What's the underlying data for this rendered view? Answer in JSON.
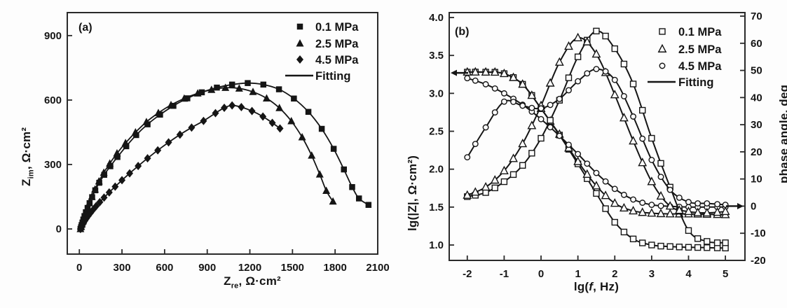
{
  "figure": {
    "colors": {
      "ink": "#151515",
      "axis": "#2a2a2a",
      "background": "#fdfdfd"
    },
    "panel_a": {
      "tag": "(a)",
      "xlabel": {
        "pre": "Z",
        "sub": "re",
        "post": ", Ω·cm²"
      },
      "ylabel": {
        "pre": "Z",
        "sub": "im",
        "post": ", Ω·cm²"
      },
      "legend": [
        {
          "label": "0.1 MPa",
          "marker": "square-filled"
        },
        {
          "label": "2.5 MPa",
          "marker": "triangle-filled"
        },
        {
          "label": "4.5 MPa",
          "marker": "diamond-filled"
        },
        {
          "label": "Fitting",
          "marker": "line"
        }
      ]
    },
    "panel_b": {
      "tag": "(b)",
      "xlabel": {
        "pre": "lg(",
        "it": "f",
        "post": ", Hz)"
      },
      "ylabel_left": "lg(|Z|, Ω·cm²)",
      "ylabel_right": "phase angle, deg",
      "legend": [
        {
          "label": "0.1 MPa",
          "marker": "square-open"
        },
        {
          "label": "2.5 MPa",
          "marker": "triangle-open"
        },
        {
          "label": "4.5 MPa",
          "marker": "circle-open"
        },
        {
          "label": "Fitting",
          "marker": "line"
        }
      ]
    }
  },
  "chart_data": [
    {
      "id": "a",
      "type": "scatter",
      "panel": "(a)",
      "xlabel": "Z_re, Ω·cm²",
      "ylabel": "Z_im, Ω·cm²",
      "xlim": [
        -85,
        2100
      ],
      "ylim": [
        -117,
        1007
      ],
      "x_ticks": {
        "values": [
          0,
          300,
          600,
          900,
          1200,
          1500,
          1800,
          2100
        ],
        "labels": [
          "0",
          "300",
          "600",
          "900",
          "1200",
          "1500",
          "1800",
          "2100"
        ]
      },
      "y_ticks": {
        "values": [
          0,
          300,
          600,
          900
        ],
        "labels": [
          "0",
          "300",
          "600",
          "900"
        ]
      },
      "grid": false,
      "legend_position": "top-right",
      "series": [
        {
          "name": "0.1 MPa",
          "marker": "square-filled",
          "points": [
            [
              8,
              0
            ],
            [
              12,
              8
            ],
            [
              16,
              18
            ],
            [
              22,
              30
            ],
            [
              28,
              44
            ],
            [
              36,
              60
            ],
            [
              46,
              78
            ],
            [
              58,
              98
            ],
            [
              72,
              120
            ],
            [
              90,
              148
            ],
            [
              112,
              180
            ],
            [
              140,
              215
            ],
            [
              175,
              252
            ],
            [
              218,
              292
            ],
            [
              268,
              335
            ],
            [
              330,
              385
            ],
            [
              400,
              437
            ],
            [
              480,
              487
            ],
            [
              568,
              532
            ],
            [
              662,
              573
            ],
            [
              760,
              608
            ],
            [
              862,
              636
            ],
            [
              968,
              658
            ],
            [
              1075,
              672
            ],
            [
              1185,
              679
            ],
            [
              1295,
              672
            ],
            [
              1405,
              650
            ],
            [
              1510,
              607
            ],
            [
              1612,
              545
            ],
            [
              1706,
              466
            ],
            [
              1790,
              373
            ],
            [
              1862,
              277
            ],
            [
              1920,
              195
            ],
            [
              1968,
              142
            ],
            [
              2035,
              112
            ]
          ]
        },
        {
          "name": "2.5 MPa",
          "marker": "triangle-filled",
          "points": [
            [
              8,
              0
            ],
            [
              13,
              10
            ],
            [
              18,
              22
            ],
            [
              25,
              36
            ],
            [
              33,
              52
            ],
            [
              43,
              72
            ],
            [
              55,
              94
            ],
            [
              70,
              120
            ],
            [
              88,
              150
            ],
            [
              110,
              184
            ],
            [
              138,
              222
            ],
            [
              172,
              262
            ],
            [
              214,
              305
            ],
            [
              265,
              352
            ],
            [
              325,
              400
            ],
            [
              395,
              450
            ],
            [
              472,
              498
            ],
            [
              556,
              540
            ],
            [
              645,
              577
            ],
            [
              738,
              607
            ],
            [
              833,
              631
            ],
            [
              930,
              648
            ],
            [
              1028,
              657
            ],
            [
              1125,
              654
            ],
            [
              1222,
              638
            ],
            [
              1318,
              608
            ],
            [
              1408,
              563
            ],
            [
              1492,
              502
            ],
            [
              1568,
              427
            ],
            [
              1635,
              342
            ],
            [
              1692,
              254
            ],
            [
              1738,
              178
            ],
            [
              1785,
              128
            ]
          ]
        },
        {
          "name": "4.5 MPa",
          "marker": "diamond-filled",
          "points": [
            [
              8,
              0
            ],
            [
              12,
              6
            ],
            [
              17,
              12
            ],
            [
              23,
              20
            ],
            [
              30,
              28
            ],
            [
              39,
              38
            ],
            [
              50,
              49
            ],
            [
              63,
              61
            ],
            [
              78,
              74
            ],
            [
              96,
              89
            ],
            [
              118,
              106
            ],
            [
              144,
              125
            ],
            [
              174,
              146
            ],
            [
              210,
              170
            ],
            [
              252,
              197
            ],
            [
              300,
              227
            ],
            [
              354,
              259
            ],
            [
              414,
              293
            ],
            [
              480,
              329
            ],
            [
              552,
              366
            ],
            [
              628,
              403
            ],
            [
              708,
              439
            ],
            [
              790,
              472
            ],
            [
              874,
              503
            ],
            [
              958,
              539
            ],
            [
              1020,
              564
            ],
            [
              1075,
              575
            ],
            [
              1140,
              567
            ],
            [
              1215,
              549
            ],
            [
              1292,
              523
            ],
            [
              1358,
              494
            ],
            [
              1412,
              468
            ]
          ]
        }
      ]
    },
    {
      "id": "b",
      "type": "line",
      "panel": "(b)",
      "xlabel": "lg(f, Hz)",
      "ylabel_left": "lg(|Z|, Ω·cm²)",
      "ylabel_right": "phase angle, deg",
      "xlim": [
        -2.49,
        5.53
      ],
      "ylim_left": [
        0.797,
        4.065
      ],
      "ylim_right": [
        -20,
        71.3
      ],
      "x_ticks": {
        "values": [
          -2,
          -1,
          0,
          1,
          2,
          3,
          4,
          5
        ],
        "labels": [
          "-2",
          "-1",
          "0",
          "1",
          "2",
          "3",
          "4",
          "5"
        ]
      },
      "y_left_ticks": {
        "values": [
          1.0,
          1.5,
          2.0,
          2.5,
          3.0,
          3.5,
          4.0
        ],
        "labels": [
          "1.0",
          "1.5",
          "2.0",
          "2.5",
          "3.0",
          "3.5",
          "4.0"
        ]
      },
      "y_right_ticks": {
        "values": [
          -20,
          -10,
          0,
          10,
          20,
          30,
          40,
          50,
          60,
          70
        ],
        "labels": [
          "-20",
          "-10",
          "0",
          "10",
          "20",
          "30",
          "40",
          "50",
          "60",
          "70"
        ]
      },
      "grid": false,
      "legend_position": "top-right",
      "x": [
        -2,
        -1.5,
        -1,
        -0.5,
        0,
        0.5,
        1,
        1.5,
        2,
        2.5,
        3,
        3.5,
        4,
        4.5,
        5
      ],
      "annotations": [
        {
          "type": "arrow",
          "axis": "left",
          "value": 3.27,
          "side": "left"
        },
        {
          "type": "arrow",
          "axis": "right",
          "value": 0,
          "side": "right"
        }
      ],
      "series": [
        {
          "name": "0.1 MPa |Z|",
          "axis": "left",
          "marker": "square-open",
          "values": [
            3.28,
            3.28,
            3.26,
            3.12,
            2.8,
            2.45,
            2.07,
            1.68,
            1.3,
            1.08,
            1.0,
            0.98,
            0.97,
            0.965,
            0.96
          ]
        },
        {
          "name": "2.5 MPa |Z|",
          "axis": "left",
          "marker": "triangle-open",
          "values": [
            3.28,
            3.28,
            3.26,
            3.12,
            2.8,
            2.46,
            2.1,
            1.78,
            1.55,
            1.45,
            1.42,
            1.41,
            1.41,
            1.405,
            1.4
          ]
        },
        {
          "name": "4.5 MPa |Z|",
          "axis": "left",
          "marker": "circle-open",
          "values": [
            3.2,
            3.12,
            3.0,
            2.85,
            2.66,
            2.44,
            2.2,
            1.95,
            1.74,
            1.6,
            1.53,
            1.51,
            1.5,
            1.5,
            1.5
          ]
        },
        {
          "name": "0.1 MPa phase",
          "axis": "right",
          "marker": "square-open",
          "values": [
            3.5,
            5,
            9,
            15,
            25,
            39,
            55,
            64.5,
            58,
            45,
            25,
            7,
            -9,
            -13,
            -13.5
          ]
        },
        {
          "name": "2.5 MPa phase",
          "axis": "right",
          "marker": "triangle-open",
          "values": [
            4,
            7,
            13,
            23,
            37,
            53,
            62,
            56,
            41,
            24,
            9,
            0,
            -2,
            -2.5,
            -2
          ]
        },
        {
          "name": "4.5 MPa phase",
          "axis": "right",
          "marker": "circle-open",
          "values": [
            18,
            29,
            38.5,
            37,
            36,
            39.5,
            46,
            50.5,
            46.5,
            33,
            17,
            6,
            1.5,
            1,
            0.5
          ]
        }
      ]
    }
  ]
}
